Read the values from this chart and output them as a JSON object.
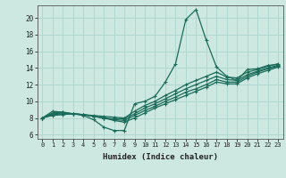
{
  "xlabel": "Humidex (Indice chaleur)",
  "xlim": [
    -0.5,
    23.5
  ],
  "ylim": [
    5.5,
    21.5
  ],
  "xticks": [
    0,
    1,
    2,
    3,
    4,
    5,
    6,
    7,
    8,
    9,
    10,
    11,
    12,
    13,
    14,
    15,
    16,
    17,
    18,
    19,
    20,
    21,
    22,
    23
  ],
  "yticks": [
    6,
    8,
    10,
    12,
    14,
    16,
    18,
    20
  ],
  "bg_color": "#cce8e0",
  "grid_color": "#b0d8d0",
  "line_color": "#1a6b5a",
  "lines": [
    {
      "x": [
        0,
        1,
        2,
        3,
        4,
        5,
        6,
        7,
        8,
        9,
        10,
        11,
        12,
        13,
        14,
        15,
        16,
        17,
        18,
        19,
        20,
        21,
        22,
        23
      ],
      "y": [
        8.0,
        8.8,
        8.7,
        8.5,
        8.3,
        7.8,
        6.9,
        6.5,
        6.5,
        9.7,
        10.0,
        10.6,
        12.3,
        14.5,
        19.8,
        21.0,
        17.3,
        14.1,
        13.0,
        12.5,
        13.8,
        13.9,
        14.3,
        14.4
      ]
    },
    {
      "x": [
        0,
        1,
        2,
        3,
        4,
        5,
        6,
        7,
        8,
        9,
        10,
        11,
        12,
        13,
        14,
        15,
        16,
        17,
        18,
        19,
        20,
        21,
        22,
        23
      ],
      "y": [
        8.0,
        8.6,
        8.7,
        8.5,
        8.4,
        8.3,
        8.2,
        8.1,
        8.0,
        8.8,
        9.5,
        10.0,
        10.7,
        11.3,
        12.0,
        12.5,
        13.0,
        13.5,
        12.9,
        12.8,
        13.5,
        13.8,
        14.2,
        14.5
      ]
    },
    {
      "x": [
        0,
        1,
        2,
        3,
        4,
        5,
        6,
        7,
        8,
        9,
        10,
        11,
        12,
        13,
        14,
        15,
        16,
        17,
        18,
        19,
        20,
        21,
        22,
        23
      ],
      "y": [
        8.0,
        8.5,
        8.6,
        8.5,
        8.4,
        8.2,
        8.0,
        7.9,
        7.9,
        8.5,
        9.2,
        9.7,
        10.3,
        10.9,
        11.5,
        12.0,
        12.5,
        13.0,
        12.6,
        12.5,
        13.2,
        13.6,
        14.0,
        14.3
      ]
    },
    {
      "x": [
        0,
        1,
        2,
        3,
        4,
        5,
        6,
        7,
        8,
        9,
        10,
        11,
        12,
        13,
        14,
        15,
        16,
        17,
        18,
        19,
        20,
        21,
        22,
        23
      ],
      "y": [
        8.0,
        8.4,
        8.5,
        8.5,
        8.4,
        8.2,
        8.0,
        7.8,
        7.7,
        8.3,
        8.9,
        9.4,
        10.0,
        10.5,
        11.1,
        11.5,
        12.0,
        12.6,
        12.3,
        12.3,
        13.0,
        13.5,
        13.9,
        14.2
      ]
    },
    {
      "x": [
        0,
        1,
        2,
        3,
        4,
        5,
        6,
        7,
        8,
        9,
        10,
        11,
        12,
        13,
        14,
        15,
        16,
        17,
        18,
        19,
        20,
        21,
        22,
        23
      ],
      "y": [
        8.0,
        8.3,
        8.4,
        8.5,
        8.4,
        8.2,
        8.0,
        7.7,
        7.5,
        8.0,
        8.6,
        9.2,
        9.7,
        10.2,
        10.7,
        11.2,
        11.7,
        12.3,
        12.1,
        12.1,
        12.8,
        13.3,
        13.7,
        14.1
      ]
    }
  ],
  "marker": "+",
  "marker_size": 3,
  "line_width": 0.9
}
